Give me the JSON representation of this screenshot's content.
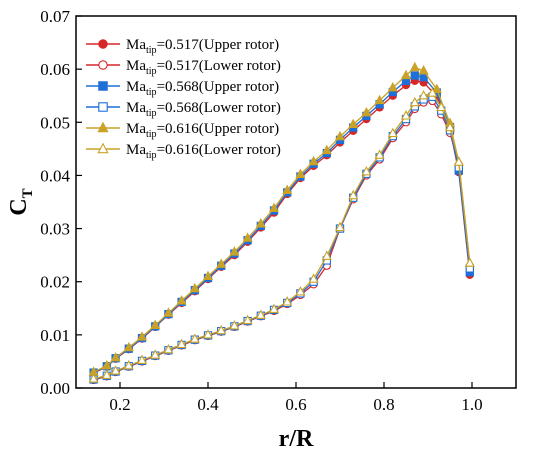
{
  "chart_data": {
    "type": "line",
    "xlabel": "r/R",
    "ylabel_main": "C",
    "ylabel_sub": "T",
    "xlim": [
      0.1,
      1.1
    ],
    "ylim": [
      0.0,
      0.07
    ],
    "x_ticks": [
      "0.2",
      "0.4",
      "0.6",
      "0.8",
      "1.0"
    ],
    "y_ticks": [
      "0.00",
      "0.01",
      "0.02",
      "0.03",
      "0.04",
      "0.05",
      "0.06",
      "0.07"
    ],
    "legend_position": "top-left",
    "series": [
      {
        "name_main": "Ma",
        "name_sub": "tip",
        "name_rest": "=0.517(Upper rotor)",
        "color": "#d62728",
        "marker": "circle",
        "filled": true,
        "x": [
          0.14,
          0.17,
          0.19,
          0.22,
          0.25,
          0.28,
          0.31,
          0.34,
          0.37,
          0.4,
          0.43,
          0.46,
          0.49,
          0.52,
          0.55,
          0.58,
          0.61,
          0.64,
          0.67,
          0.7,
          0.73,
          0.76,
          0.79,
          0.82,
          0.85,
          0.87,
          0.89,
          0.92,
          0.95,
          0.97,
          0.995
        ],
        "y": [
          0.0028,
          0.004,
          0.0055,
          0.0073,
          0.0093,
          0.0115,
          0.0138,
          0.016,
          0.0182,
          0.0205,
          0.0228,
          0.025,
          0.0275,
          0.0302,
          0.033,
          0.0365,
          0.0395,
          0.0418,
          0.0438,
          0.0462,
          0.0484,
          0.0506,
          0.0528,
          0.055,
          0.057,
          0.0578,
          0.0575,
          0.0549,
          0.0487,
          0.0406,
          0.0213
        ]
      },
      {
        "name_main": "Ma",
        "name_sub": "tip",
        "name_rest": "=0.517(Lower rotor)",
        "color": "#d62728",
        "marker": "circle",
        "filled": false,
        "x": [
          0.14,
          0.17,
          0.19,
          0.22,
          0.25,
          0.28,
          0.31,
          0.34,
          0.37,
          0.4,
          0.43,
          0.46,
          0.49,
          0.52,
          0.55,
          0.58,
          0.61,
          0.64,
          0.67,
          0.7,
          0.73,
          0.76,
          0.79,
          0.82,
          0.85,
          0.87,
          0.89,
          0.91,
          0.93,
          0.95,
          0.97,
          0.995
        ],
        "y": [
          0.0015,
          0.0022,
          0.003,
          0.004,
          0.005,
          0.006,
          0.007,
          0.008,
          0.009,
          0.0098,
          0.0106,
          0.0115,
          0.0125,
          0.0135,
          0.0145,
          0.0158,
          0.0175,
          0.0195,
          0.023,
          0.03,
          0.0355,
          0.04,
          0.043,
          0.047,
          0.05,
          0.0525,
          0.0537,
          0.054,
          0.0515,
          0.048,
          0.042,
          0.022
        ]
      },
      {
        "name_main": "Ma",
        "name_sub": "tip",
        "name_rest": "=0.568(Upper rotor)",
        "color": "#1f6fd9",
        "marker": "square",
        "filled": true,
        "x": [
          0.14,
          0.17,
          0.19,
          0.22,
          0.25,
          0.28,
          0.31,
          0.34,
          0.37,
          0.4,
          0.43,
          0.46,
          0.49,
          0.52,
          0.55,
          0.58,
          0.61,
          0.64,
          0.67,
          0.7,
          0.73,
          0.76,
          0.79,
          0.82,
          0.85,
          0.87,
          0.89,
          0.92,
          0.95,
          0.97,
          0.995
        ],
        "y": [
          0.0029,
          0.0041,
          0.0056,
          0.0074,
          0.0094,
          0.0116,
          0.0139,
          0.0162,
          0.0184,
          0.0207,
          0.023,
          0.0253,
          0.0278,
          0.0305,
          0.0334,
          0.0368,
          0.0398,
          0.0422,
          0.0442,
          0.0467,
          0.049,
          0.0512,
          0.0534,
          0.0557,
          0.0578,
          0.0588,
          0.0585,
          0.0556,
          0.0491,
          0.0409,
          0.0218
        ]
      },
      {
        "name_main": "Ma",
        "name_sub": "tip",
        "name_rest": "=0.568(Lower rotor)",
        "color": "#1f6fd9",
        "marker": "square",
        "filled": false,
        "x": [
          0.14,
          0.17,
          0.19,
          0.22,
          0.25,
          0.28,
          0.31,
          0.34,
          0.37,
          0.4,
          0.43,
          0.46,
          0.49,
          0.52,
          0.55,
          0.58,
          0.61,
          0.64,
          0.67,
          0.7,
          0.73,
          0.76,
          0.79,
          0.82,
          0.85,
          0.87,
          0.89,
          0.91,
          0.93,
          0.95,
          0.97,
          0.995
        ],
        "y": [
          0.0016,
          0.0023,
          0.0031,
          0.0041,
          0.0051,
          0.0061,
          0.0071,
          0.0081,
          0.0091,
          0.0099,
          0.0107,
          0.0116,
          0.0126,
          0.0136,
          0.0147,
          0.016,
          0.0178,
          0.02,
          0.024,
          0.03,
          0.0358,
          0.0403,
          0.0434,
          0.0474,
          0.0506,
          0.053,
          0.0543,
          0.0548,
          0.0522,
          0.0485,
          0.0415,
          0.0225
        ]
      },
      {
        "name_main": "Ma",
        "name_sub": "tip",
        "name_rest": "=0.616(Upper rotor)",
        "color": "#c9a227",
        "marker": "triangle",
        "filled": true,
        "x": [
          0.14,
          0.17,
          0.19,
          0.22,
          0.25,
          0.28,
          0.31,
          0.34,
          0.37,
          0.4,
          0.43,
          0.46,
          0.49,
          0.52,
          0.55,
          0.58,
          0.61,
          0.64,
          0.67,
          0.7,
          0.73,
          0.76,
          0.79,
          0.82,
          0.85,
          0.87,
          0.89,
          0.92,
          0.95,
          0.97,
          0.995
        ],
        "y": [
          0.003,
          0.0042,
          0.0057,
          0.0076,
          0.0096,
          0.0118,
          0.0141,
          0.0164,
          0.0187,
          0.021,
          0.0233,
          0.0256,
          0.0282,
          0.0309,
          0.0338,
          0.0372,
          0.0402,
          0.0426,
          0.0447,
          0.0473,
          0.0496,
          0.0518,
          0.0541,
          0.0565,
          0.0588,
          0.0603,
          0.0597,
          0.0562,
          0.0498,
          0.0425,
          0.0235
        ]
      },
      {
        "name_main": "Ma",
        "name_sub": "tip",
        "name_rest": "=0.616(Lower rotor)",
        "color": "#c9a227",
        "marker": "triangle",
        "filled": false,
        "x": [
          0.14,
          0.17,
          0.19,
          0.22,
          0.25,
          0.28,
          0.31,
          0.34,
          0.37,
          0.4,
          0.43,
          0.46,
          0.49,
          0.52,
          0.55,
          0.58,
          0.61,
          0.64,
          0.67,
          0.7,
          0.73,
          0.76,
          0.79,
          0.82,
          0.85,
          0.87,
          0.89,
          0.91,
          0.93,
          0.95,
          0.97,
          0.995
        ],
        "y": [
          0.0017,
          0.0024,
          0.0032,
          0.0042,
          0.0052,
          0.0062,
          0.0072,
          0.0082,
          0.0092,
          0.01,
          0.0108,
          0.0117,
          0.0127,
          0.0137,
          0.0148,
          0.0162,
          0.0181,
          0.0205,
          0.0248,
          0.0302,
          0.0362,
          0.0407,
          0.0438,
          0.0479,
          0.0512,
          0.0537,
          0.055,
          0.0555,
          0.0528,
          0.049,
          0.0425,
          0.0235
        ]
      }
    ]
  }
}
